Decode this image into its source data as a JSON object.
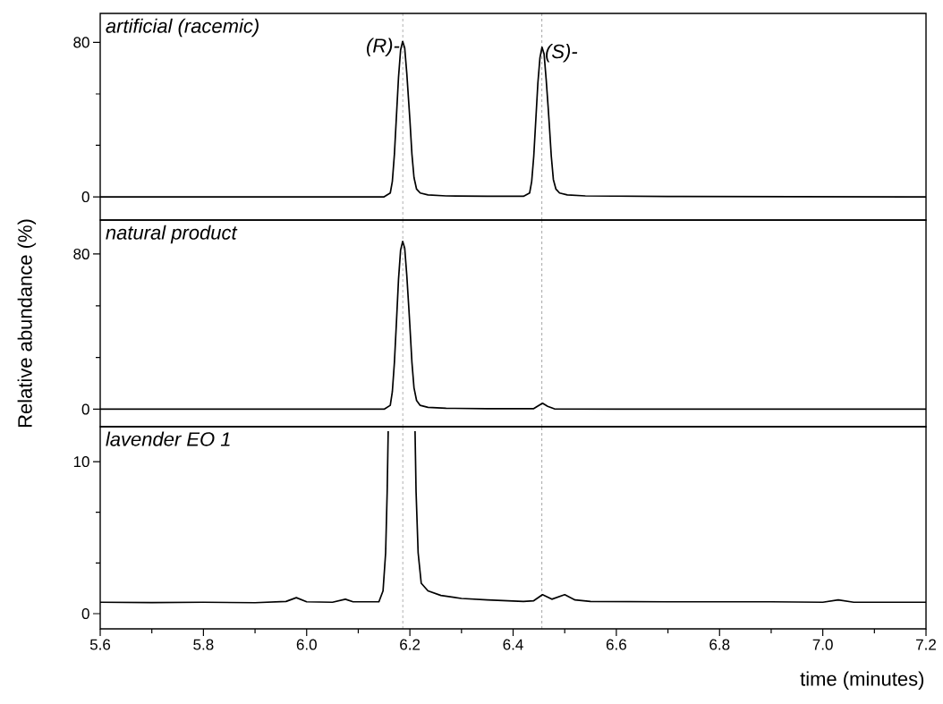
{
  "chart_data": [
    {
      "type": "line",
      "title": "artificial (racemic)",
      "xlim": [
        5.6,
        7.2
      ],
      "ylim": [
        -12,
        95
      ],
      "yticks": [
        0,
        {
          "value": 26.7,
          "label": null
        },
        {
          "value": 53.3,
          "label": null
        },
        80
      ],
      "tick_labels": "y",
      "annotations": [
        {
          "text": "(R)-",
          "x": 6.186,
          "y": 80.5
        },
        {
          "text": "(S)-",
          "x": 6.456,
          "y": 77.5
        }
      ],
      "ref_lines": [
        {
          "axis": "x",
          "value": 6.186,
          "line_style": "dashed"
        },
        {
          "axis": "x",
          "value": 6.456,
          "line_style": "dashed"
        }
      ],
      "series": [
        {
          "color": "#000000",
          "x": [
            5.6,
            6.0,
            6.15,
            6.162,
            6.166,
            6.17,
            6.174,
            6.178,
            6.182,
            6.186,
            6.19,
            6.194,
            6.198,
            6.2,
            6.204,
            6.208,
            6.213,
            6.22,
            6.235,
            6.27,
            6.35,
            6.42,
            6.432,
            6.436,
            6.44,
            6.444,
            6.448,
            6.452,
            6.456,
            6.46,
            6.464,
            6.468,
            6.47,
            6.474,
            6.478,
            6.483,
            6.49,
            6.505,
            6.54,
            6.7,
            7.2
          ],
          "values": [
            0,
            0,
            0,
            2,
            8,
            22,
            42,
            62,
            76,
            80.5,
            77,
            64,
            48,
            40,
            22,
            10,
            4,
            2,
            1,
            0.5,
            0.3,
            0.3,
            2,
            8,
            21,
            40,
            59,
            72,
            77.5,
            74,
            61,
            46,
            38,
            21,
            9,
            4,
            2,
            1,
            0.5,
            0.2,
            0
          ]
        }
      ]
    },
    {
      "type": "line",
      "title": "natural product",
      "ylabel": "Relative abundance (%)",
      "xlim": [
        5.6,
        7.2
      ],
      "ylim": [
        -9,
        97.5
      ],
      "yticks": [
        0,
        {
          "value": 26.7,
          "label": null
        },
        {
          "value": 53.3,
          "label": null
        },
        80
      ],
      "tick_labels": "y",
      "ref_lines": [
        {
          "axis": "x",
          "value": 6.186,
          "line_style": "dashed"
        },
        {
          "axis": "x",
          "value": 6.456,
          "line_style": "dashed"
        }
      ],
      "series": [
        {
          "color": "#000000",
          "x": [
            5.6,
            6.0,
            6.15,
            6.162,
            6.166,
            6.17,
            6.174,
            6.178,
            6.182,
            6.186,
            6.19,
            6.194,
            6.198,
            6.2,
            6.204,
            6.208,
            6.213,
            6.22,
            6.235,
            6.27,
            6.35,
            6.44,
            6.447,
            6.457,
            6.467,
            6.48,
            6.6,
            7.2
          ],
          "values": [
            0,
            0,
            0,
            2,
            9,
            24,
            45,
            67,
            82,
            86.5,
            83,
            69,
            52,
            43,
            24,
            11,
            4.5,
            2,
            1,
            0.5,
            0.3,
            0.3,
            1.5,
            3.1,
            1.5,
            0.2,
            0,
            0
          ]
        }
      ]
    },
    {
      "type": "line",
      "title": "lavender EO 1",
      "xlabel": "time (minutes)",
      "xlim": [
        5.6,
        7.2
      ],
      "ylim": [
        -1,
        12.3
      ],
      "yticks": [
        0,
        {
          "value": 3.33,
          "label": null
        },
        {
          "value": 6.67,
          "label": null
        },
        10
      ],
      "xticks": [
        5.6,
        {
          "value": 5.7,
          "label": null
        },
        5.8,
        {
          "value": 5.9,
          "label": null
        },
        {
          "value": 6.0,
          "label": "6.0"
        },
        {
          "value": 6.1,
          "label": null
        },
        6.2,
        {
          "value": 6.3,
          "label": null
        },
        6.4,
        {
          "value": 6.5,
          "label": null
        },
        6.6,
        {
          "value": 6.7,
          "label": null
        },
        6.8,
        {
          "value": 6.9,
          "label": null
        },
        {
          "value": 7.0,
          "label": "7.0"
        },
        {
          "value": 7.1,
          "label": null
        },
        7.2
      ],
      "ref_lines": [
        {
          "axis": "x",
          "value": 6.186,
          "line_style": "dashed"
        },
        {
          "axis": "x",
          "value": 6.456,
          "line_style": "dashed"
        }
      ],
      "series": [
        {
          "color": "#000000",
          "x": [
            5.6,
            5.7,
            5.8,
            5.9,
            5.96,
            5.98,
            6.0,
            6.05,
            6.075,
            6.09,
            6.14,
            6.148,
            6.153,
            6.156,
            6.158,
            6.185,
            6.21,
            6.212,
            6.216,
            6.222,
            6.235,
            6.26,
            6.3,
            6.35,
            6.42,
            6.44,
            6.457,
            6.475,
            6.5,
            6.52,
            6.55,
            6.7,
            6.9,
            7.0,
            7.03,
            7.06,
            7.2
          ],
          "values": [
            0.75,
            0.73,
            0.75,
            0.72,
            0.8,
            1.05,
            0.78,
            0.75,
            0.95,
            0.78,
            0.78,
            1.5,
            4,
            8,
            12,
            null,
            12,
            8,
            4,
            2,
            1.5,
            1.2,
            1.0,
            0.9,
            0.8,
            0.85,
            1.25,
            0.95,
            1.25,
            0.9,
            0.8,
            0.78,
            0.78,
            0.75,
            0.9,
            0.75,
            0.75
          ]
        }
      ]
    }
  ]
}
